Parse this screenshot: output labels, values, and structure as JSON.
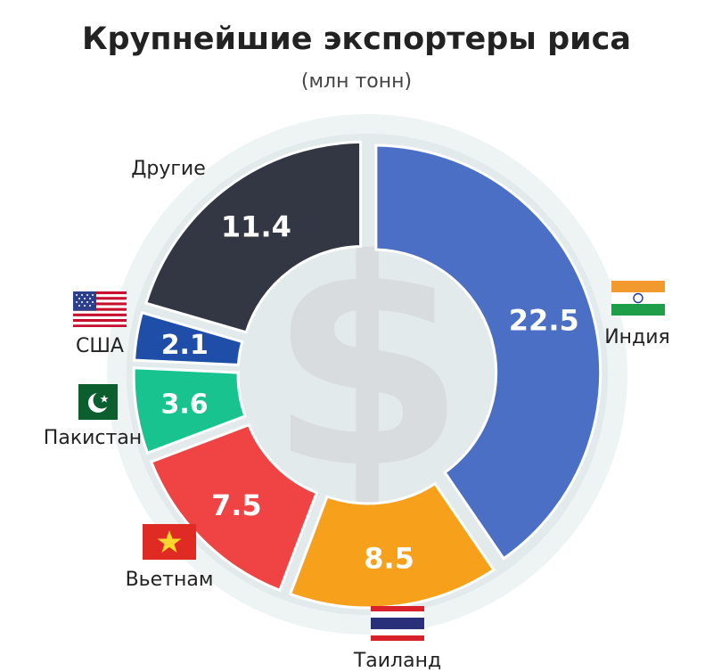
{
  "chart_data": {
    "type": "pie",
    "title": "Крупнейшие экспортеры риса",
    "subtitle": "(млн тонн)",
    "center_symbol": "$",
    "slices": [
      {
        "label": "Индия",
        "value": 22.5,
        "value_label": "22.5",
        "color": "#4b6fc4",
        "flag": "india-flag-icon"
      },
      {
        "label": "Таиланд",
        "value": 8.5,
        "value_label": "8.5",
        "color": "#f6a01c",
        "flag": "thailand-flag-icon"
      },
      {
        "label": "Вьетнам",
        "value": 7.5,
        "value_label": "7.5",
        "color": "#f04444",
        "flag": "vietnam-flag-icon"
      },
      {
        "label": "Пакистан",
        "value": 3.6,
        "value_label": "3.6",
        "color": "#18c390",
        "flag": "pakistan-flag-icon"
      },
      {
        "label": "США",
        "value": 2.1,
        "value_label": "2.1",
        "color": "#1f4ea8",
        "flag": "usa-flag-icon"
      },
      {
        "label": "Другие",
        "value": 11.4,
        "value_label": "11.4",
        "color": "#323743",
        "flag": ""
      }
    ]
  }
}
